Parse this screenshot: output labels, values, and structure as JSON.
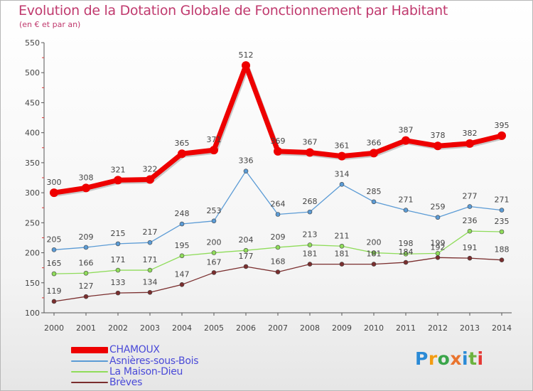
{
  "header": {
    "title": "Evolution de la Dotation Globale de Fonctionnement par Habitant",
    "subtitle": "(en € et par an)"
  },
  "logo": {
    "text": "Proxiti",
    "letters": [
      "P",
      "r",
      "o",
      "x",
      "i",
      "t",
      "i"
    ],
    "letter_colors": [
      "#2a8ad6",
      "#f39c12",
      "#3aa54a",
      "#e9742e",
      "#2a8ad6",
      "#6cb33f",
      "#e53935"
    ]
  },
  "chart_data": {
    "type": "line",
    "title": "Evolution de la Dotation Globale de Fonctionnement par Habitant",
    "subtitle": "(en € et par an)",
    "x": [
      "2000",
      "2001",
      "2002",
      "2003",
      "2004",
      "2005",
      "2006",
      "2007",
      "2008",
      "2009",
      "2010",
      "2011",
      "2012",
      "2013",
      "2014"
    ],
    "ylim": [
      100,
      550
    ],
    "yticks": [
      100,
      150,
      200,
      250,
      300,
      350,
      400,
      450,
      500,
      550
    ],
    "grid": false,
    "legend_position": "bottom-left",
    "series": [
      {
        "name": "CHAMOUX",
        "color": "#ee0000",
        "values": [
          300,
          308,
          321,
          322,
          365,
          371,
          512,
          369,
          367,
          361,
          366,
          387,
          378,
          382,
          395
        ],
        "labels": [
          "300",
          "308",
          "321",
          "322",
          "365",
          "371",
          "512",
          "369",
          "367",
          "361",
          "366",
          "387",
          "378",
          "382",
          "395"
        ]
      },
      {
        "name": "Asnières-sous-Bois",
        "color": "#5b9bd5",
        "values": [
          205,
          209,
          215,
          217,
          248,
          253,
          336,
          264,
          268,
          314,
          285,
          271,
          259,
          277,
          271
        ],
        "labels": [
          "205",
          "209",
          "215",
          "217",
          "248",
          "253",
          "336",
          "264",
          "268",
          "314",
          "285",
          "271",
          "259",
          "277",
          "271"
        ]
      },
      {
        "name": "La Maison-Dieu",
        "color": "#8fdc5a",
        "values": [
          165,
          166,
          171,
          171,
          195,
          200,
          204,
          209,
          213,
          211,
          200,
          198,
          199,
          236,
          235
        ],
        "labels": [
          "165",
          "166",
          "171",
          "171",
          "195",
          "200",
          "204",
          "209",
          "213",
          "211",
          "200",
          "198",
          "199",
          "236",
          "235"
        ]
      },
      {
        "name": "Brèves",
        "color": "#7a2e2e",
        "values": [
          119,
          127,
          133,
          134,
          147,
          167,
          177,
          168,
          181,
          181,
          181,
          184,
          192,
          191,
          188
        ],
        "labels": [
          "119",
          "127",
          "133",
          "134",
          "147",
          "167",
          "177",
          "168",
          "181",
          "181",
          "181",
          "184",
          "192",
          "191",
          "188"
        ]
      }
    ]
  }
}
